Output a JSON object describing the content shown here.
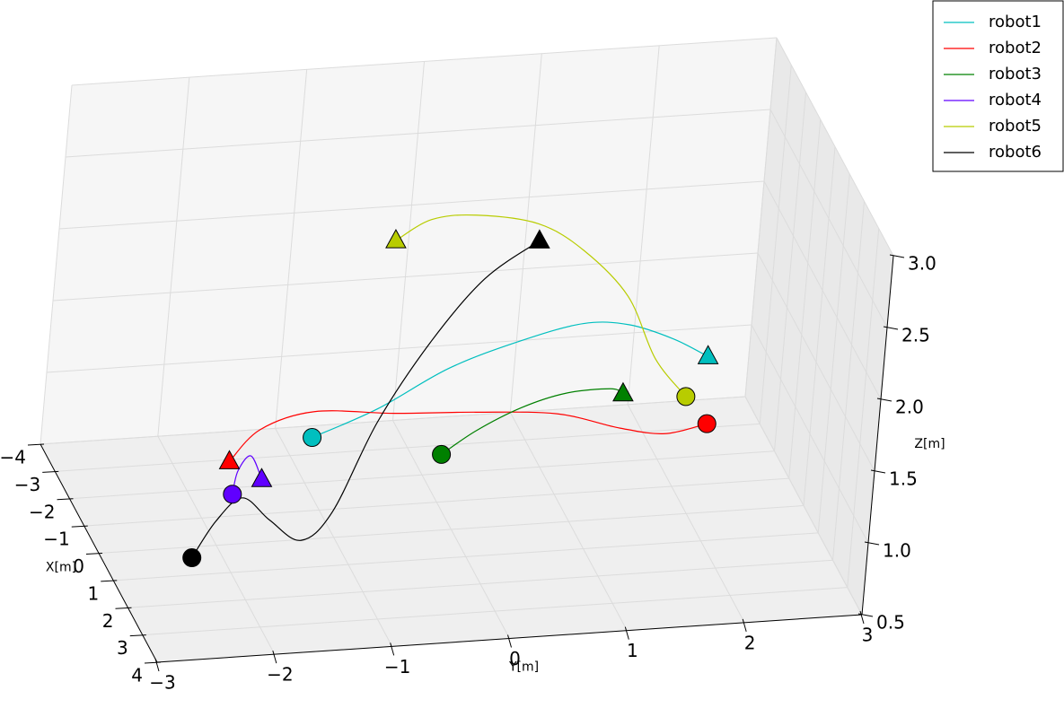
{
  "chart_data": {
    "type": "line3d",
    "xlabel": "X[m]",
    "ylabel": "Y[m]",
    "zlabel": "Z[m]",
    "xlim": [
      -4,
      4
    ],
    "ylim": [
      -3,
      3
    ],
    "zlim": [
      0.5,
      3
    ],
    "xticks": [
      {
        "value": -4,
        "label": "−4"
      },
      {
        "value": -3,
        "label": "−3"
      },
      {
        "value": -2,
        "label": "−2"
      },
      {
        "value": -1,
        "label": "−1"
      },
      0,
      1,
      2,
      3,
      4
    ],
    "yticks": [
      {
        "value": -3,
        "label": "−3"
      },
      {
        "value": -2,
        "label": "−2"
      },
      {
        "value": -1,
        "label": "−1"
      },
      0,
      1,
      2,
      3
    ],
    "zticks": [
      0.5,
      {
        "value": 1,
        "label": "1.0"
      },
      1.5,
      {
        "value": 2,
        "label": "2.0"
      },
      2.5,
      {
        "value": 3,
        "label": "3.0"
      }
    ],
    "grid": true,
    "legend": "upper right",
    "series": [
      {
        "name": "robot1",
        "color": "#00bfbf",
        "x": [
          0,
          0,
          0,
          0,
          0,
          0,
          0,
          0
        ],
        "y": [
          -1.26,
          -0.72,
          -0.14,
          0.46,
          0.98,
          1.37,
          1.76,
          2.07
        ],
        "z": [
          1.21,
          1.38,
          1.63,
          1.79,
          1.88,
          1.85,
          1.73,
          1.59
        ]
      },
      {
        "name": "robot2",
        "color": "#ff0000",
        "x": [
          0,
          0,
          0,
          0,
          0,
          0,
          0,
          0,
          0
        ],
        "y": [
          2.11,
          1.76,
          1.37,
          0.82,
          0.12,
          -0.57,
          -1.26,
          -1.71,
          -1.95
        ],
        "z": [
          1.12,
          1.07,
          1.13,
          1.26,
          1.31,
          1.34,
          1.39,
          1.29,
          1.08
        ]
      },
      {
        "name": "robot3",
        "color": "#008000",
        "x": [
          0,
          0,
          0,
          0,
          0,
          0
        ],
        "y": [
          -0.14,
          0.14,
          0.51,
          0.88,
          1.26,
          1.37
        ],
        "z": [
          1.03,
          1.18,
          1.32,
          1.4,
          1.41,
          1.37
        ]
      },
      {
        "name": "robot4",
        "color": "#6000ff",
        "x": [
          0,
          0,
          0,
          0
        ],
        "y": [
          -1.9,
          -1.87,
          -1.77,
          -1.66
        ],
        "z": [
          0.85,
          1.01,
          1.11,
          0.94
        ]
      },
      {
        "name": "robot5",
        "color": "#b8cc00",
        "x": [
          0,
          0,
          0,
          0,
          0,
          0,
          0,
          0
        ],
        "y": [
          1.91,
          1.62,
          1.34,
          0.93,
          0.52,
          -0.02,
          -0.4,
          -0.69
        ],
        "z": [
          1.32,
          1.6,
          2.05,
          2.39,
          2.6,
          2.69,
          2.68,
          2.55
        ]
      },
      {
        "name": "robot6",
        "color": "#000000",
        "x": [
          2,
          0,
          0,
          0,
          2,
          0,
          0,
          0,
          0,
          0
        ],
        "y": [
          -2.49,
          -2.02,
          -1.81,
          -1.56,
          -1.57,
          -1.03,
          -0.71,
          -0.31,
          0.1,
          0.54
        ],
        "z": [
          0.82,
          0.67,
          0.82,
          0.65,
          0.89,
          0.68,
          1.29,
          1.83,
          2.24,
          2.48
        ]
      }
    ]
  }
}
